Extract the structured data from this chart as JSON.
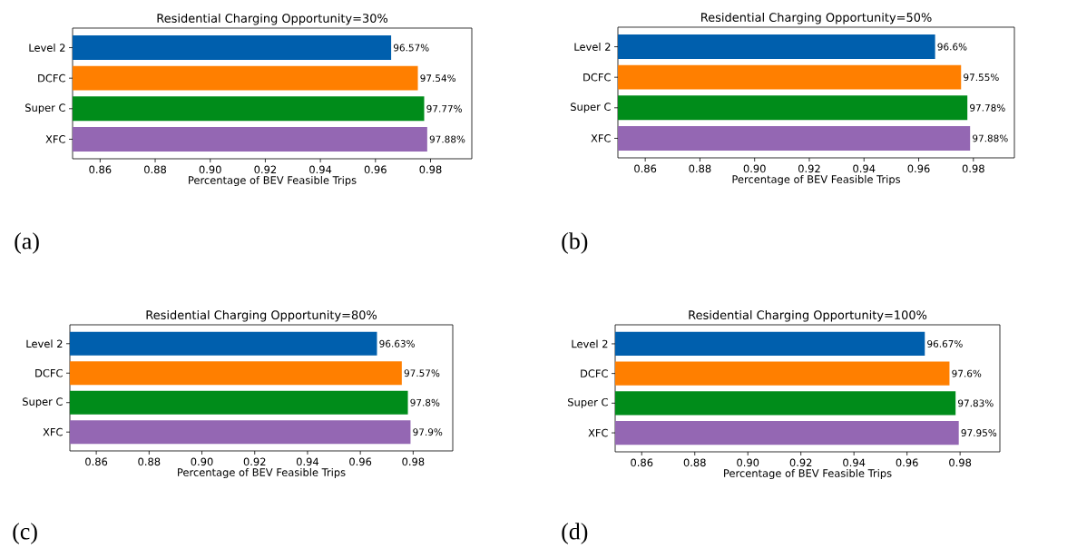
{
  "chart_data": [
    {
      "type": "bar",
      "orientation": "horizontal",
      "title": "Residential Charging Opportunity=30%",
      "xlabel": "Percentage of BEV Feasible Trips",
      "categories": [
        "Level 2",
        "DCFC",
        "Super C",
        "XFC"
      ],
      "values": [
        0.9657,
        0.9754,
        0.9777,
        0.9788
      ],
      "colors": [
        "#005fad",
        "#ff7f00",
        "#008c1a",
        "#9467b3"
      ],
      "value_labels": [
        "96.57%",
        "97.54%",
        "97.77%",
        "97.88%"
      ],
      "xlim": [
        0.85,
        0.995
      ],
      "xticks": [
        {
          "value": 0.86,
          "label": "0.86"
        },
        {
          "value": 0.88,
          "label": "0.88"
        },
        {
          "value": 0.9,
          "label": "0.90"
        },
        {
          "value": 0.92,
          "label": "0.92"
        },
        {
          "value": 0.94,
          "label": "0.94"
        },
        {
          "value": 0.96,
          "label": "0.96"
        },
        {
          "value": 0.98,
          "label": "0.98"
        }
      ],
      "annotations": [
        "(a)"
      ]
    },
    {
      "type": "bar",
      "orientation": "horizontal",
      "title": "Residential Charging Opportunity=50%",
      "xlabel": "Percentage of BEV Feasible Trips",
      "categories": [
        "Level 2",
        "DCFC",
        "Super C",
        "XFC"
      ],
      "values": [
        0.966,
        0.9755,
        0.9778,
        0.9788
      ],
      "colors": [
        "#005fad",
        "#ff7f00",
        "#008c1a",
        "#9467b3"
      ],
      "value_labels": [
        "96.6%",
        "97.55%",
        "97.78%",
        "97.88%"
      ],
      "xlim": [
        0.85,
        0.995
      ],
      "xticks": [
        {
          "value": 0.86,
          "label": "0.86"
        },
        {
          "value": 0.88,
          "label": "0.88"
        },
        {
          "value": 0.9,
          "label": "0.90"
        },
        {
          "value": 0.92,
          "label": "0.92"
        },
        {
          "value": 0.94,
          "label": "0.94"
        },
        {
          "value": 0.96,
          "label": "0.96"
        },
        {
          "value": 0.98,
          "label": "0.98"
        }
      ],
      "annotations": [
        "(b)"
      ]
    },
    {
      "type": "bar",
      "orientation": "horizontal",
      "title": "Residential Charging Opportunity=80%",
      "xlabel": "Percentage of BEV Feasible Trips",
      "categories": [
        "Level 2",
        "DCFC",
        "Super C",
        "XFC"
      ],
      "values": [
        0.9663,
        0.9757,
        0.978,
        0.979
      ],
      "colors": [
        "#005fad",
        "#ff7f00",
        "#008c1a",
        "#9467b3"
      ],
      "value_labels": [
        "96.63%",
        "97.57%",
        "97.8%",
        "97.9%"
      ],
      "xlim": [
        0.85,
        0.995
      ],
      "xticks": [
        {
          "value": 0.86,
          "label": "0.86"
        },
        {
          "value": 0.88,
          "label": "0.88"
        },
        {
          "value": 0.9,
          "label": "0.90"
        },
        {
          "value": 0.92,
          "label": "0.92"
        },
        {
          "value": 0.94,
          "label": "0.94"
        },
        {
          "value": 0.96,
          "label": "0.96"
        },
        {
          "value": 0.98,
          "label": "0.98"
        }
      ],
      "annotations": [
        "(c)"
      ]
    },
    {
      "type": "bar",
      "orientation": "horizontal",
      "title": "Residential Charging Opportunity=100%",
      "xlabel": "Percentage of BEV Feasible Trips",
      "categories": [
        "Level 2",
        "DCFC",
        "Super C",
        "XFC"
      ],
      "values": [
        0.9667,
        0.976,
        0.9783,
        0.9795
      ],
      "colors": [
        "#005fad",
        "#ff7f00",
        "#008c1a",
        "#9467b3"
      ],
      "value_labels": [
        "96.67%",
        "97.6%",
        "97.83%",
        "97.95%"
      ],
      "xlim": [
        0.85,
        0.995
      ],
      "xticks": [
        {
          "value": 0.86,
          "label": "0.86"
        },
        {
          "value": 0.88,
          "label": "0.88"
        },
        {
          "value": 0.9,
          "label": "0.90"
        },
        {
          "value": 0.92,
          "label": "0.92"
        },
        {
          "value": 0.94,
          "label": "0.94"
        },
        {
          "value": 0.96,
          "label": "0.96"
        },
        {
          "value": 0.98,
          "label": "0.98"
        }
      ],
      "annotations": [
        "(d)"
      ]
    }
  ]
}
